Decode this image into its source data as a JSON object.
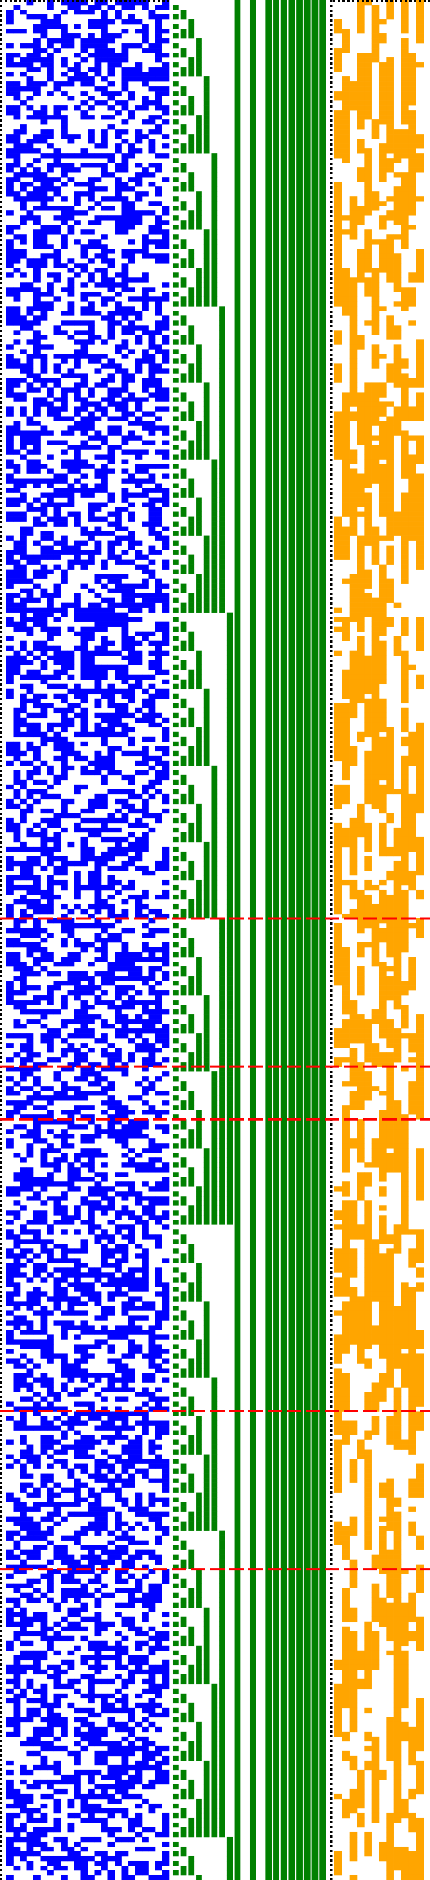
{
  "colors": {
    "background": "#ffffff",
    "input_cells": "#0000ff",
    "counter_bits": "#008000",
    "output_cells": "#ffa500",
    "row_markers": "#ff0000",
    "border_dots": "#000000"
  },
  "grid": {
    "rows": 393,
    "input_columns": 24,
    "counter_columns": 20,
    "output_columns": 12,
    "input_fill_density": 0.5,
    "output_fill_density": 0.45,
    "border_dotted": true
  },
  "counter_bit_columns_solid": [
    8,
    10,
    12,
    13,
    14,
    15,
    16,
    17,
    18,
    19
  ],
  "marked_rows": [
    192,
    223,
    234,
    295,
    328
  ]
}
